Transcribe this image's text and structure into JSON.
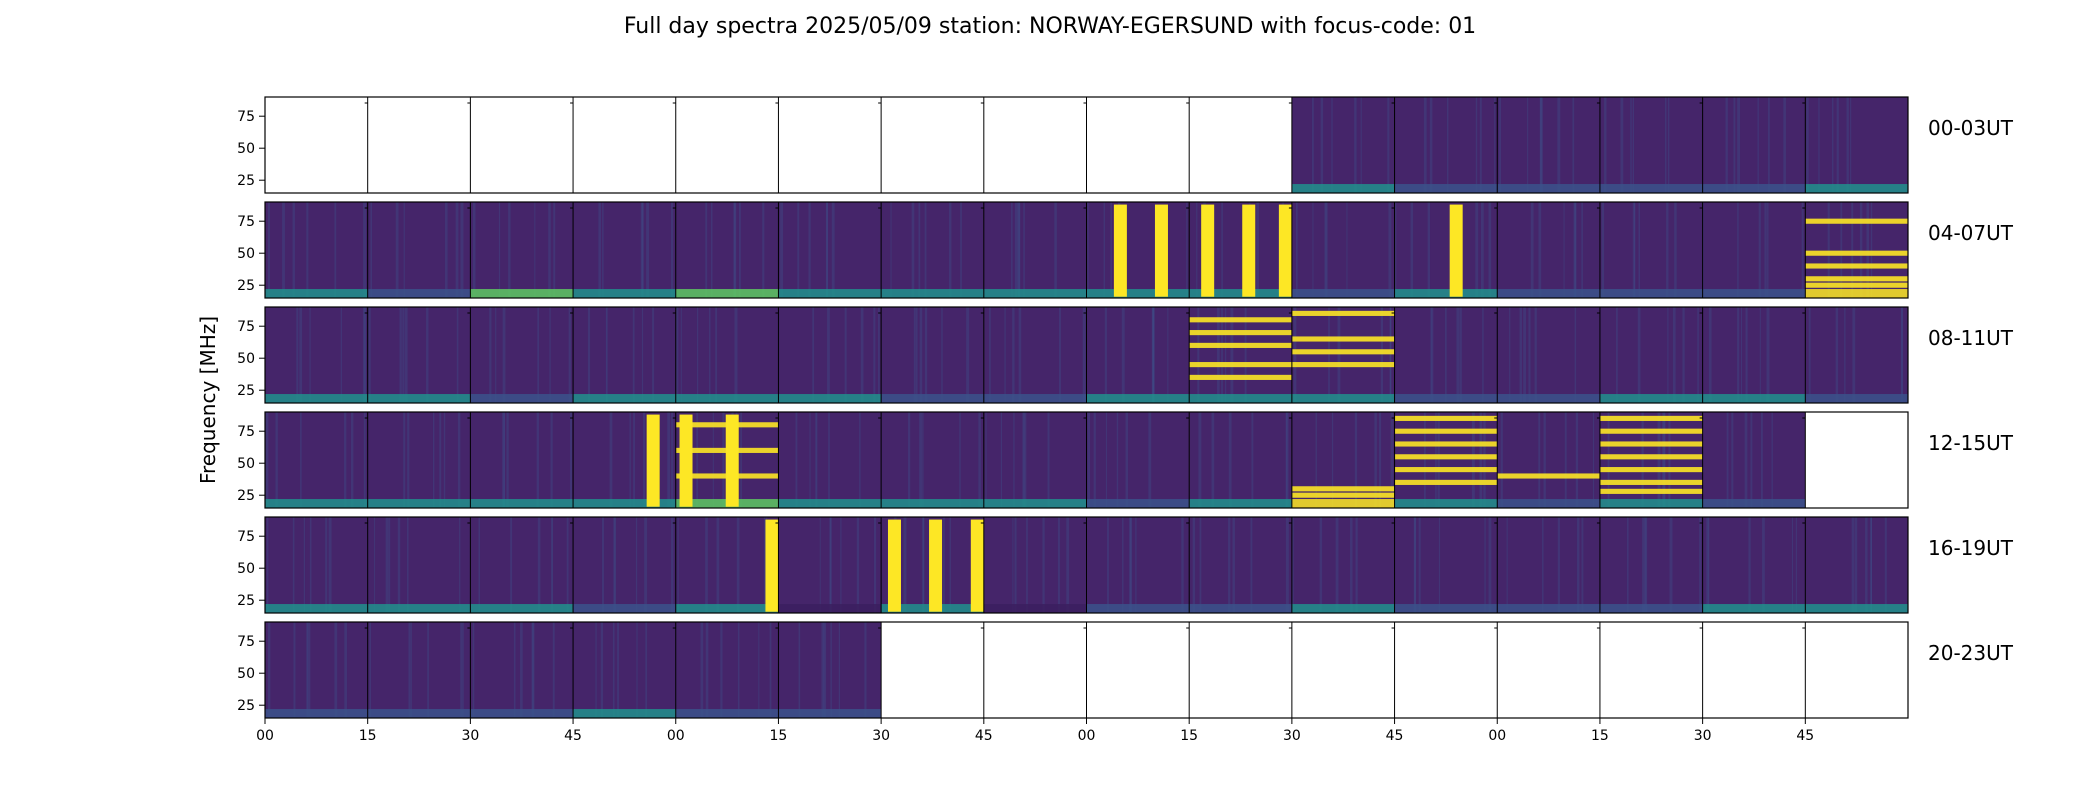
{
  "chart_data": {
    "type": "heatmap",
    "title": "Full day spectra 2025/05/09 station: NORWAY-EGERSUND with focus-code: 01",
    "ylabel": "Frequency [MHz]",
    "ylim": [
      15,
      90
    ],
    "yticks": [
      "75",
      "50",
      "25"
    ],
    "ytick_values": [
      75,
      50,
      25
    ],
    "xticks": [
      "00",
      "15",
      "30",
      "45",
      "00",
      "15",
      "30",
      "45",
      "00",
      "15",
      "30",
      "45",
      "00",
      "15",
      "30",
      "45"
    ],
    "colormap": "viridis",
    "colors": {
      "low": "#3b1e5f",
      "bg": "#45256a",
      "mid": "#3b528b",
      "teal": "#21918c",
      "green": "#5ec962",
      "high": "#fde725"
    },
    "panels_per_row": 16,
    "panel_minutes": 15,
    "rows": [
      {
        "label": "00-03UT",
        "panels": [
          {
            "has_data": false
          },
          {
            "has_data": false
          },
          {
            "has_data": false
          },
          {
            "has_data": false
          },
          {
            "has_data": false
          },
          {
            "has_data": false
          },
          {
            "has_data": false
          },
          {
            "has_data": false
          },
          {
            "has_data": false
          },
          {
            "has_data": false
          },
          {
            "has_data": true,
            "low_band": "teal",
            "bursts": []
          },
          {
            "has_data": true,
            "low_band": "mid",
            "bursts": []
          },
          {
            "has_data": true,
            "low_band": "mid",
            "bursts": []
          },
          {
            "has_data": true,
            "low_band": "mid",
            "bursts": []
          },
          {
            "has_data": true,
            "low_band": "mid",
            "bursts": []
          },
          {
            "has_data": true,
            "low_band": "teal",
            "bursts": []
          }
        ]
      },
      {
        "label": "04-07UT",
        "panels": [
          {
            "has_data": true,
            "low_band": "teal",
            "bursts": []
          },
          {
            "has_data": true,
            "low_band": "mid",
            "bursts": []
          },
          {
            "has_data": true,
            "low_band": "green",
            "bursts": []
          },
          {
            "has_data": true,
            "low_band": "teal",
            "bursts": []
          },
          {
            "has_data": true,
            "low_band": "green",
            "bursts": []
          },
          {
            "has_data": true,
            "low_band": "teal",
            "bursts": []
          },
          {
            "has_data": true,
            "low_band": "teal",
            "bursts": []
          },
          {
            "has_data": true,
            "low_band": "teal",
            "bursts": []
          },
          {
            "has_data": true,
            "low_band": "teal",
            "bursts": [
              0.33,
              0.73
            ]
          },
          {
            "has_data": true,
            "low_band": "teal",
            "bursts": [
              0.18,
              0.58,
              0.95
            ]
          },
          {
            "has_data": true,
            "low_band": "mid",
            "bursts": []
          },
          {
            "has_data": true,
            "low_band": "teal",
            "bursts": [
              0.6
            ]
          },
          {
            "has_data": true,
            "low_band": "mid",
            "bursts": []
          },
          {
            "has_data": true,
            "low_band": "mid",
            "bursts": []
          },
          {
            "has_data": true,
            "low_band": "mid",
            "bursts": []
          },
          {
            "has_data": true,
            "low_band": "high",
            "bursts": [],
            "bands": [
              75,
              50,
              40,
              30,
              25
            ]
          }
        ]
      },
      {
        "label": "08-11UT",
        "panels": [
          {
            "has_data": true,
            "low_band": "teal",
            "bursts": []
          },
          {
            "has_data": true,
            "low_band": "teal",
            "bursts": []
          },
          {
            "has_data": true,
            "low_band": "mid",
            "bursts": []
          },
          {
            "has_data": true,
            "low_band": "teal",
            "bursts": []
          },
          {
            "has_data": true,
            "low_band": "teal",
            "bursts": []
          },
          {
            "has_data": true,
            "low_band": "teal",
            "bursts": []
          },
          {
            "has_data": true,
            "low_band": "mid",
            "bursts": []
          },
          {
            "has_data": true,
            "low_band": "mid",
            "bursts": []
          },
          {
            "has_data": true,
            "low_band": "teal",
            "bursts": []
          },
          {
            "has_data": true,
            "low_band": "teal",
            "bursts": [],
            "bands": [
              80,
              70,
              60,
              45,
              35
            ]
          },
          {
            "has_data": true,
            "low_band": "teal",
            "bursts": [],
            "bands": [
              85,
              65,
              55,
              45
            ]
          },
          {
            "has_data": true,
            "low_band": "mid",
            "bursts": []
          },
          {
            "has_data": true,
            "low_band": "mid",
            "bursts": []
          },
          {
            "has_data": true,
            "low_band": "teal",
            "bursts": []
          },
          {
            "has_data": true,
            "low_band": "teal",
            "bursts": []
          },
          {
            "has_data": true,
            "low_band": "mid",
            "bursts": []
          }
        ]
      },
      {
        "label": "12-15UT",
        "panels": [
          {
            "has_data": true,
            "low_band": "teal",
            "bursts": []
          },
          {
            "has_data": true,
            "low_band": "teal",
            "bursts": []
          },
          {
            "has_data": true,
            "low_band": "teal",
            "bursts": []
          },
          {
            "has_data": true,
            "low_band": "teal",
            "bursts": [
              0.78
            ]
          },
          {
            "has_data": true,
            "low_band": "green",
            "bursts": [
              0.1,
              0.55
            ],
            "bands": [
              80,
              60,
              40
            ]
          },
          {
            "has_data": true,
            "low_band": "teal",
            "bursts": []
          },
          {
            "has_data": true,
            "low_band": "teal",
            "bursts": []
          },
          {
            "has_data": true,
            "low_band": "teal",
            "bursts": []
          },
          {
            "has_data": true,
            "low_band": "mid",
            "bursts": []
          },
          {
            "has_data": true,
            "low_band": "teal",
            "bursts": []
          },
          {
            "has_data": true,
            "low_band": "high",
            "bursts": [],
            "bands": [
              30,
              25
            ]
          },
          {
            "has_data": true,
            "low_band": "teal",
            "bursts": [],
            "bands": [
              85,
              75,
              65,
              55,
              45,
              35
            ]
          },
          {
            "has_data": true,
            "low_band": "mid",
            "bursts": [],
            "bands": [
              40
            ]
          },
          {
            "has_data": true,
            "low_band": "teal",
            "bursts": [],
            "bands": [
              85,
              75,
              65,
              55,
              45,
              35,
              28
            ]
          },
          {
            "has_data": true,
            "low_band": "mid",
            "bursts": []
          },
          {
            "has_data": false
          }
        ]
      },
      {
        "label": "16-19UT",
        "panels": [
          {
            "has_data": true,
            "low_band": "teal",
            "bursts": []
          },
          {
            "has_data": true,
            "low_band": "teal",
            "bursts": []
          },
          {
            "has_data": true,
            "low_band": "teal",
            "bursts": []
          },
          {
            "has_data": true,
            "low_band": "mid",
            "bursts": []
          },
          {
            "has_data": true,
            "low_band": "teal",
            "bursts": [
              0.97
            ]
          },
          {
            "has_data": true,
            "low_band": "low",
            "bursts": []
          },
          {
            "has_data": true,
            "low_band": "teal",
            "bursts": [
              0.13,
              0.53,
              0.95
            ]
          },
          {
            "has_data": true,
            "low_band": "low",
            "bursts": []
          },
          {
            "has_data": true,
            "low_band": "mid",
            "bursts": []
          },
          {
            "has_data": true,
            "low_band": "mid",
            "bursts": []
          },
          {
            "has_data": true,
            "low_band": "teal",
            "bursts": []
          },
          {
            "has_data": true,
            "low_band": "mid",
            "bursts": []
          },
          {
            "has_data": true,
            "low_band": "mid",
            "bursts": []
          },
          {
            "has_data": true,
            "low_band": "mid",
            "bursts": []
          },
          {
            "has_data": true,
            "low_band": "teal",
            "bursts": []
          },
          {
            "has_data": true,
            "low_band": "teal",
            "bursts": []
          }
        ]
      },
      {
        "label": "20-23UT",
        "panels": [
          {
            "has_data": true,
            "low_band": "mid",
            "bursts": []
          },
          {
            "has_data": true,
            "low_band": "mid",
            "bursts": []
          },
          {
            "has_data": true,
            "low_band": "mid",
            "bursts": []
          },
          {
            "has_data": true,
            "low_band": "teal",
            "bursts": []
          },
          {
            "has_data": true,
            "low_band": "mid",
            "bursts": []
          },
          {
            "has_data": true,
            "low_band": "mid",
            "bursts": []
          },
          {
            "has_data": false
          },
          {
            "has_data": false
          },
          {
            "has_data": false
          },
          {
            "has_data": false
          },
          {
            "has_data": false
          },
          {
            "has_data": false
          },
          {
            "has_data": false
          },
          {
            "has_data": false
          },
          {
            "has_data": false
          },
          {
            "has_data": false
          }
        ]
      }
    ]
  }
}
